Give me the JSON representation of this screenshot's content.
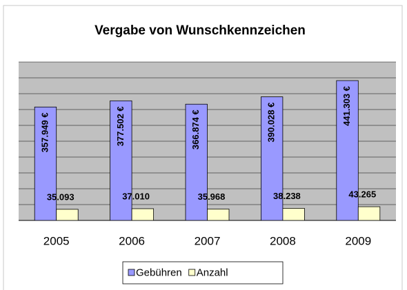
{
  "chart_data": {
    "type": "bar",
    "title": "Vergabe von Wunschkennzeichen",
    "categories": [
      "2005",
      "2006",
      "2007",
      "2008",
      "2009"
    ],
    "series": [
      {
        "name": "Gebühren",
        "color": "#9999ff",
        "values": [
          357949,
          377502,
          366874,
          390028,
          441303
        ],
        "value_labels": [
          "357.949 €",
          "377.502 €",
          "366.874 €",
          "390.028 €",
          "441.303 €"
        ]
      },
      {
        "name": "Anzahl",
        "color": "#ffffcc",
        "values": [
          35093,
          37010,
          35968,
          38238,
          43265
        ],
        "value_labels": [
          "35.093",
          "37.010",
          "35.968",
          "38.238",
          "43.265"
        ]
      }
    ],
    "ylim": [
      0,
      500000
    ],
    "yticks": [
      0,
      50000,
      100000,
      150000,
      200000,
      250000,
      300000,
      350000,
      400000,
      450000,
      500000
    ],
    "grid": true,
    "legend": "bottom"
  }
}
